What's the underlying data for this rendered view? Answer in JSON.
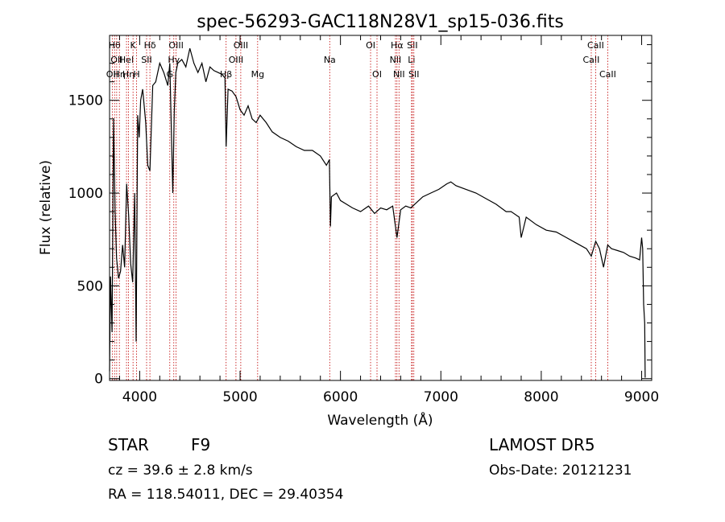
{
  "chart_data": {
    "type": "line",
    "title": "spec-56293-GAC118N28V1_sp15-036.fits",
    "xlabel": "Wavelength (Å)",
    "ylabel": "Flux (relative)",
    "xlim": [
      3700,
      9100
    ],
    "ylim": [
      -10,
      1850
    ],
    "xticks": [
      4000,
      5000,
      6000,
      7000,
      8000,
      9000
    ],
    "yticks": [
      0,
      500,
      1000,
      1500
    ],
    "grid": false,
    "series": [
      {
        "x": [
          3700,
          3710,
          3725,
          3740,
          3755,
          3770,
          3790,
          3810,
          3830,
          3850,
          3870,
          3890,
          3910,
          3930,
          3950,
          3965,
          3980,
          3995,
          4010,
          4030,
          4060,
          4080,
          4102,
          4130,
          4160,
          4200,
          4240,
          4280,
          4300,
          4330,
          4345,
          4360,
          4380,
          4420,
          4460,
          4500,
          4540,
          4580,
          4620,
          4660,
          4700,
          4740,
          4780,
          4820,
          4850,
          4861,
          4880,
          4920,
          4960,
          5000,
          5040,
          5080,
          5120,
          5160,
          5200,
          5260,
          5320,
          5400,
          5480,
          5560,
          5640,
          5720,
          5800,
          5860,
          5890,
          5900,
          5910,
          5960,
          6000,
          6060,
          6120,
          6200,
          6280,
          6340,
          6400,
          6460,
          6520,
          6563,
          6600,
          6650,
          6700,
          6760,
          6820,
          6900,
          6980,
          7060,
          7100,
          7150,
          7250,
          7350,
          7450,
          7550,
          7650,
          7700,
          7780,
          7800,
          7850,
          7950,
          8050,
          8150,
          8250,
          8350,
          8450,
          8498,
          8542,
          8580,
          8620,
          8662,
          8700,
          8760,
          8820,
          8880,
          8940,
          8980,
          9000,
          9010,
          9020,
          9030,
          9035
        ],
        "values": [
          40,
          550,
          250,
          1400,
          900,
          650,
          540,
          580,
          720,
          600,
          1050,
          880,
          620,
          520,
          1000,
          200,
          1420,
          1300,
          1500,
          1560,
          1380,
          1150,
          1120,
          1580,
          1600,
          1700,
          1650,
          1580,
          1700,
          1000,
          1450,
          1650,
          1700,
          1720,
          1680,
          1780,
          1700,
          1650,
          1700,
          1600,
          1680,
          1660,
          1650,
          1640,
          1620,
          1250,
          1560,
          1550,
          1520,
          1450,
          1420,
          1470,
          1400,
          1380,
          1420,
          1380,
          1330,
          1300,
          1280,
          1250,
          1230,
          1230,
          1200,
          1150,
          1180,
          820,
          980,
          1000,
          960,
          940,
          920,
          900,
          930,
          890,
          920,
          910,
          930,
          760,
          910,
          930,
          920,
          950,
          980,
          1000,
          1020,
          1050,
          1060,
          1040,
          1020,
          1000,
          970,
          940,
          900,
          900,
          870,
          760,
          870,
          830,
          800,
          790,
          760,
          730,
          700,
          660,
          740,
          700,
          600,
          720,
          700,
          690,
          680,
          660,
          650,
          640,
          760,
          700,
          400,
          300,
          5
        ]
      }
    ],
    "line_markers": [
      {
        "wavelength": 3727,
        "label": "OII",
        "row": 3
      },
      {
        "wavelength": 3750,
        "label": "Hθ",
        "row": 1
      },
      {
        "wavelength": 3771,
        "label": "OII",
        "row": 2
      },
      {
        "wavelength": 3798,
        "label": "Hη",
        "row": 3
      },
      {
        "wavelength": 3869,
        "label": "HeI",
        "row": 2
      },
      {
        "wavelength": 3889,
        "label": "Hη",
        "row": 3
      },
      {
        "wavelength": 3934,
        "label": "K",
        "row": 1
      },
      {
        "wavelength": 3969,
        "label": "H",
        "row": 3
      },
      {
        "wavelength": 4069,
        "label": "SII",
        "row": 2
      },
      {
        "wavelength": 4102,
        "label": "Hδ",
        "row": 1
      },
      {
        "wavelength": 4300,
        "label": "G",
        "row": 3
      },
      {
        "wavelength": 4340,
        "label": "Hγ",
        "row": 2
      },
      {
        "wavelength": 4363,
        "label": "OIII",
        "row": 1
      },
      {
        "wavelength": 4861,
        "label": "Hβ",
        "row": 3
      },
      {
        "wavelength": 4959,
        "label": "OIII",
        "row": 2
      },
      {
        "wavelength": 5007,
        "label": "OIII",
        "row": 1
      },
      {
        "wavelength": 5175,
        "label": "Mg",
        "row": 3
      },
      {
        "wavelength": 5893,
        "label": "Na",
        "row": 2
      },
      {
        "wavelength": 6300,
        "label": "OI",
        "row": 1
      },
      {
        "wavelength": 6364,
        "label": "OI",
        "row": 3
      },
      {
        "wavelength": 6548,
        "label": "NII",
        "row": 2
      },
      {
        "wavelength": 6563,
        "label": "Hα",
        "row": 1
      },
      {
        "wavelength": 6583,
        "label": "NII",
        "row": 3
      },
      {
        "wavelength": 6708,
        "label": "Li",
        "row": 2
      },
      {
        "wavelength": 6716,
        "label": "SII",
        "row": 1
      },
      {
        "wavelength": 6731,
        "label": "SII",
        "row": 3
      },
      {
        "wavelength": 8498,
        "label": "CaII",
        "row": 2
      },
      {
        "wavelength": 8542,
        "label": "CaII",
        "row": 1
      },
      {
        "wavelength": 8662,
        "label": "CaII",
        "row": 3
      }
    ]
  },
  "info": {
    "object_class": "STAR",
    "subclass": "F9",
    "redshift": "cz = 39.6 ± 2.8 km/s",
    "coords": "RA = 118.54011, DEC =  29.40354",
    "survey": "LAMOST DR5",
    "obs_date": "Obs-Date: 20121231"
  },
  "colors": {
    "spectrum": "#000000",
    "marker_line": "#c00000",
    "axes": "#000000",
    "background": "#ffffff"
  }
}
